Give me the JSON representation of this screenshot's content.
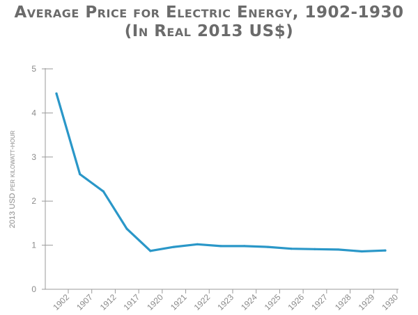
{
  "chart_data": {
    "type": "line",
    "title_line1": "Average Price for Electric Energy, 1902-1930",
    "title_line2": "(In Real 2013 US$)",
    "xlabel": "",
    "ylabel": "2013 USD per kilowatt-hour",
    "categories": [
      "1902",
      "1907",
      "1912",
      "1917",
      "1920",
      "1921",
      "1922",
      "1923",
      "1924",
      "1925",
      "1926",
      "1927",
      "1928",
      "1929",
      "1930"
    ],
    "values": [
      4.44,
      2.61,
      2.22,
      1.37,
      0.87,
      0.96,
      1.02,
      0.98,
      0.98,
      0.96,
      0.92,
      0.91,
      0.9,
      0.86,
      0.88
    ],
    "yticks": [
      "0",
      "1",
      "2",
      "3",
      "4",
      "5"
    ],
    "ylim": [
      0,
      5
    ],
    "grid": false,
    "line_color": "#2a97c8",
    "axis_color": "#9a9a9a",
    "text_color": "#8a8a8a",
    "title_color": "#6b6b6b"
  }
}
